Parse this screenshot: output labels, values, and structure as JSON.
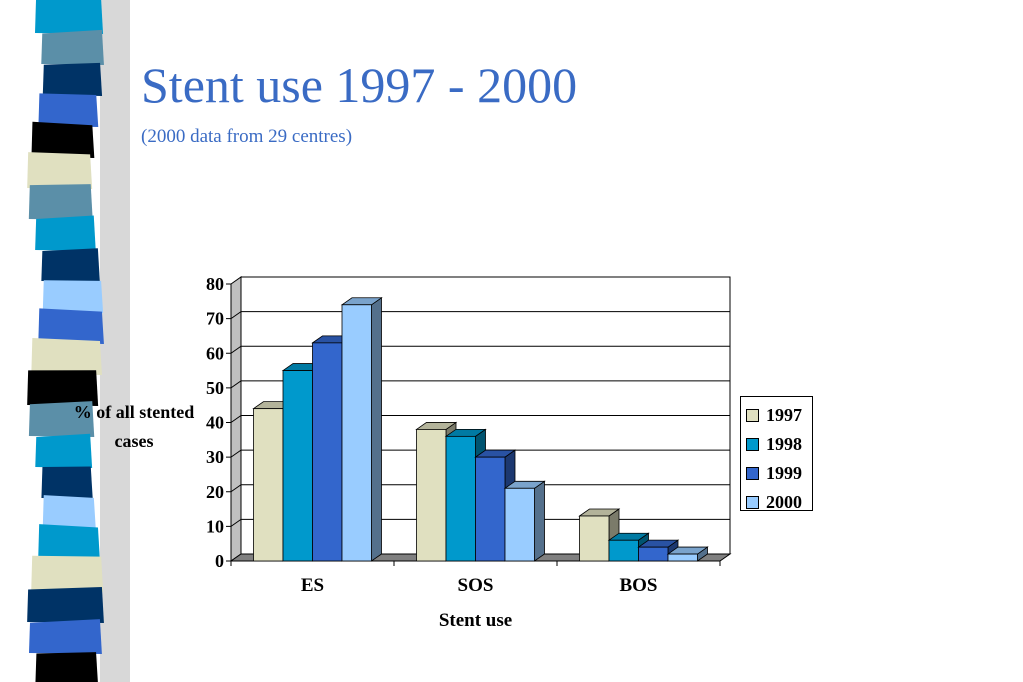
{
  "slide": {
    "title": "Stent use 1997 - 2000",
    "subtitle": "(2000 data from 29 centres)"
  },
  "chart_data": {
    "type": "bar",
    "style": "3d-clustered-column",
    "categories": [
      "ES",
      "SOS",
      "BOS"
    ],
    "series": [
      {
        "name": "1997",
        "values": [
          44,
          38,
          13
        ],
        "color": "#e0e0c0"
      },
      {
        "name": "1998",
        "values": [
          55,
          36,
          6
        ],
        "color": "#0099cc"
      },
      {
        "name": "1999",
        "values": [
          63,
          30,
          4
        ],
        "color": "#3366cc"
      },
      {
        "name": "2000",
        "values": [
          74,
          21,
          2
        ],
        "color": "#99ccff"
      }
    ],
    "xlabel": "Stent use",
    "ylabel": "%  of all stented cases",
    "ylim": [
      0,
      80
    ],
    "yticks": [
      "0",
      "10",
      "20",
      "30",
      "40",
      "50",
      "60",
      "70",
      "80"
    ],
    "grid": true,
    "legend_position": "right"
  },
  "colors": {
    "title": "#3a6bc4",
    "stripe_palette": [
      "#0099cc",
      "#003366",
      "#3366cc",
      "#000000",
      "#e0e0c0",
      "#5b8fa8",
      "#99ccff"
    ]
  }
}
